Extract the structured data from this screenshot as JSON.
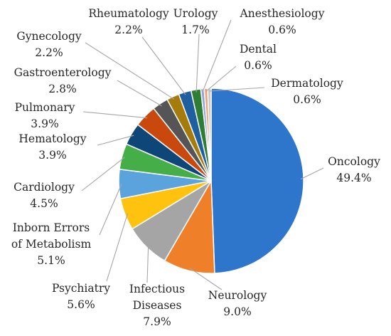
{
  "chart_data": {
    "type": "pie",
    "title": "",
    "legend": "none",
    "slices": [
      {
        "label": "Oncology",
        "value": 49.4,
        "label_text": "49.4%",
        "color": "#2e75cc"
      },
      {
        "label": "Neurology",
        "value": 9.0,
        "label_text": "9.0%",
        "color": "#f07f2a"
      },
      {
        "label": "Infectious Diseases",
        "label_lines": [
          "Infectious",
          "Diseases"
        ],
        "value": 7.9,
        "label_text": "7.9%",
        "color": "#a5a5a5"
      },
      {
        "label": "Psychiatry",
        "value": 5.6,
        "label_text": "5.6%",
        "color": "#ffc20e"
      },
      {
        "label": "Inborn Errors of Metabolism",
        "label_lines": [
          "Inborn Errors",
          "of Metabolism"
        ],
        "value": 5.1,
        "label_text": "5.1%",
        "color": "#5ba3dd"
      },
      {
        "label": "Cardiology",
        "value": 4.5,
        "label_text": "4.5%",
        "color": "#46ae48"
      },
      {
        "label": "Hematology",
        "value": 3.9,
        "label_text": "3.9%",
        "color": "#0d4677"
      },
      {
        "label": "Pulmonary",
        "value": 3.9,
        "label_text": "3.9%",
        "color": "#c8480d"
      },
      {
        "label": "Gastroenterology",
        "value": 2.8,
        "label_text": "2.8%",
        "color": "#555555"
      },
      {
        "label": "Gynecology",
        "value": 2.2,
        "label_text": "2.2%",
        "color": "#a57c0b"
      },
      {
        "label": "Rheumatology",
        "value": 2.2,
        "label_text": "2.2%",
        "color": "#1f5f9e"
      },
      {
        "label": "Urology",
        "value": 1.7,
        "label_text": "1.7%",
        "color": "#2e7d32"
      },
      {
        "label": "Anesthesiology",
        "value": 0.6,
        "label_text": "0.6%",
        "color": "#8fa8d8"
      },
      {
        "label": "Dental",
        "value": 0.6,
        "label_text": "0.6%",
        "color": "#f2a27a"
      },
      {
        "label": "Dermatology",
        "value": 0.6,
        "label_text": "0.6%",
        "color": "#c9c9c9"
      }
    ]
  }
}
